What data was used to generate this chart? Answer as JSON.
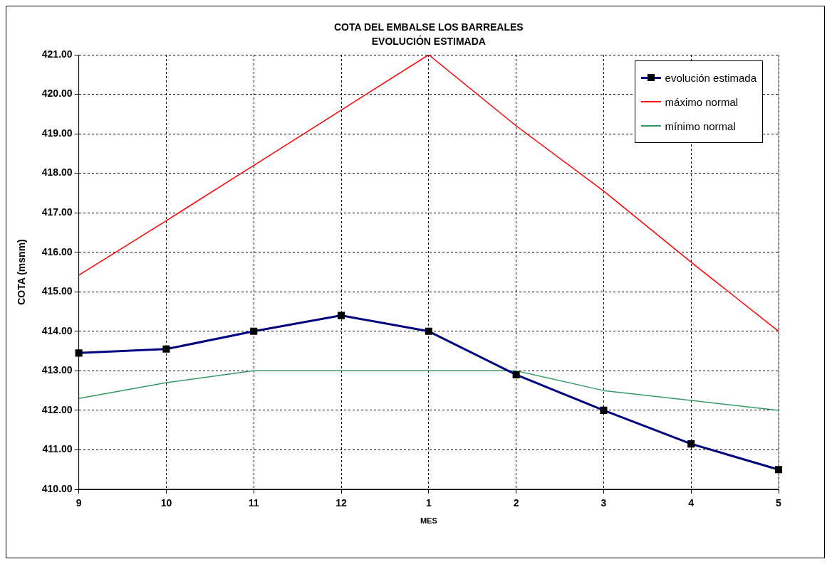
{
  "chart_data": {
    "type": "line",
    "title": "COTA DEL EMBALSE LOS BARREALES",
    "subtitle": "EVOLUCIÓN ESTIMADA",
    "xlabel": "MES",
    "ylabel": "COTA (msnm)",
    "categories": [
      "9",
      "10",
      "11",
      "12",
      "1",
      "2",
      "3",
      "4",
      "5"
    ],
    "series": [
      {
        "name": "evolución estimada",
        "color": "#000080",
        "marker": "square",
        "values": [
          413.45,
          413.55,
          414.0,
          414.4,
          414.0,
          412.9,
          412.0,
          411.15,
          410.5
        ]
      },
      {
        "name": "máximo normal",
        "color": "#ff0000",
        "marker": "none",
        "values": [
          415.42,
          416.8,
          418.2,
          419.6,
          421.0,
          419.2,
          417.55,
          415.75,
          414.0
        ]
      },
      {
        "name": "mínimo normal",
        "color": "#339966",
        "marker": "none",
        "values": [
          412.3,
          412.7,
          413.0,
          413.0,
          413.0,
          413.0,
          412.5,
          412.25,
          412.0
        ]
      }
    ],
    "ylim": [
      410,
      421
    ],
    "yticks": [
      {
        "value": 410,
        "label": "410.00"
      },
      {
        "value": 411,
        "label": "411.00"
      },
      {
        "value": 412,
        "label": "412.00"
      },
      {
        "value": 413,
        "label": "413.00"
      },
      {
        "value": 414,
        "label": "414.00"
      },
      {
        "value": 415,
        "label": "415.00"
      },
      {
        "value": 416,
        "label": "416.00"
      },
      {
        "value": 417,
        "label": "417.00"
      },
      {
        "value": 418,
        "label": "418.00"
      },
      {
        "value": 419,
        "label": "419.00"
      },
      {
        "value": 420,
        "label": "420.00"
      },
      {
        "value": 421,
        "label": "421.00"
      }
    ],
    "grid": true,
    "legend": "top right",
    "line_style": "solid"
  }
}
